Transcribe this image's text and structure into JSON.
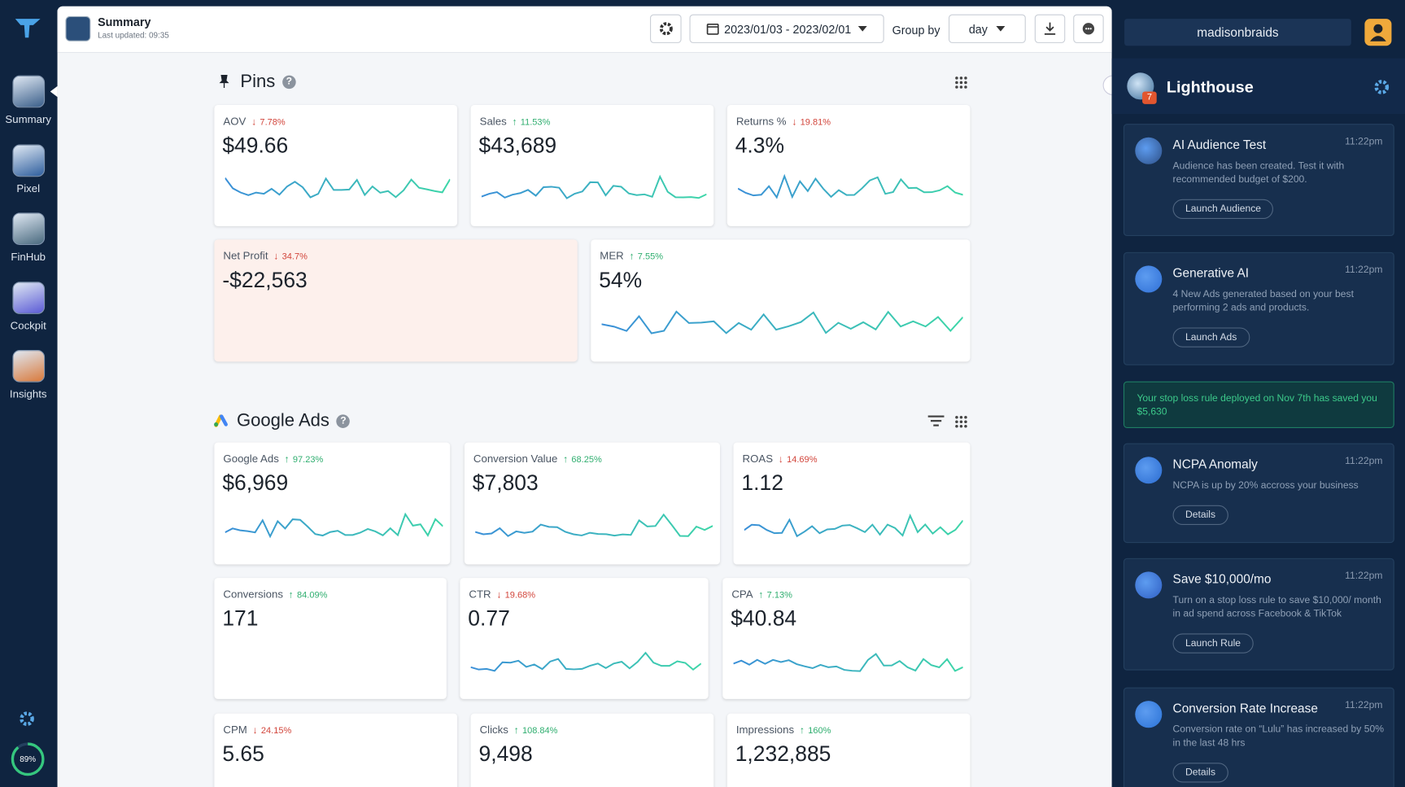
{
  "sidebar": {
    "items": [
      "Summary",
      "Pixel",
      "FinHub",
      "Cockpit",
      "Insights"
    ],
    "progress": "89%"
  },
  "header": {
    "title": "Summary",
    "updated": "Last updated: 09:35",
    "date_range": "2023/01/03 - 2023/02/01",
    "group_by_label": "Group by",
    "group_by": "day"
  },
  "pins": {
    "title": "Pins",
    "cards": [
      {
        "label": "AOV",
        "change": "7.78%",
        "direction": "down",
        "value": "$49.66"
      },
      {
        "label": "Sales",
        "change": "11.53%",
        "direction": "up",
        "value": "$43,689"
      },
      {
        "label": "Returns %",
        "change": "19.81%",
        "direction": "down",
        "value": "4.3%"
      },
      {
        "label": "Net Profit",
        "change": "34.7%",
        "direction": "down",
        "value": "-$22,563"
      },
      {
        "label": "MER",
        "change": "7.55%",
        "direction": "up",
        "value": "54%"
      }
    ]
  },
  "google_ads": {
    "title": "Google Ads",
    "cards": [
      {
        "label": "Google Ads",
        "change": "97.23%",
        "direction": "up",
        "value": "$6,969"
      },
      {
        "label": "Conversion Value",
        "change": "68.25%",
        "direction": "up",
        "value": "$7,803"
      },
      {
        "label": "ROAS",
        "change": "14.69%",
        "direction": "down",
        "value": "1.12"
      },
      {
        "label": "Conversions",
        "change": "84.09%",
        "direction": "up",
        "value": "171"
      },
      {
        "label": "CTR",
        "change": "19.68%",
        "direction": "down",
        "value": "0.77"
      },
      {
        "label": "CPA",
        "change": "7.13%",
        "direction": "up",
        "value": "$40.84"
      },
      {
        "label": "CPM",
        "change": "24.15%",
        "direction": "down",
        "value": "5.65"
      },
      {
        "label": "Clicks",
        "change": "108.84%",
        "direction": "up",
        "value": "9,498"
      },
      {
        "label": "Impressions",
        "change": "160%",
        "direction": "up",
        "value": "1,232,885"
      }
    ]
  },
  "panel": {
    "user": "madisonbraids",
    "title": "Lighthouse",
    "badge": "7",
    "items": [
      {
        "title": "AI Audience Test",
        "time": "11:22pm",
        "text": "Audience has been created. Test it with recommended budget of $200.",
        "button": "Launch Audience"
      },
      {
        "title": "Generative AI",
        "time": "11:22pm",
        "text": "4 New Ads generated based on your best performing 2 ads and products.",
        "button": "Launch Ads"
      },
      {
        "alert": "Your stop loss rule deployed on Nov 7th has saved you $5,630"
      },
      {
        "title": "NCPA Anomaly",
        "time": "11:22pm",
        "text": "NCPA is up by 20% accross your business",
        "button": "Details"
      },
      {
        "title": "Save $10,000/mo",
        "time": "11:22pm",
        "text": "Turn on a stop loss rule to save $10,000/ month in ad spend across Facebook & TikTok",
        "button": "Launch Rule"
      },
      {
        "title": "Conversion Rate Increase",
        "time": "11:22pm",
        "text": "Conversion rate on “Lulu” has increased by 50% in the last 48 hrs",
        "button": "Details"
      }
    ]
  }
}
